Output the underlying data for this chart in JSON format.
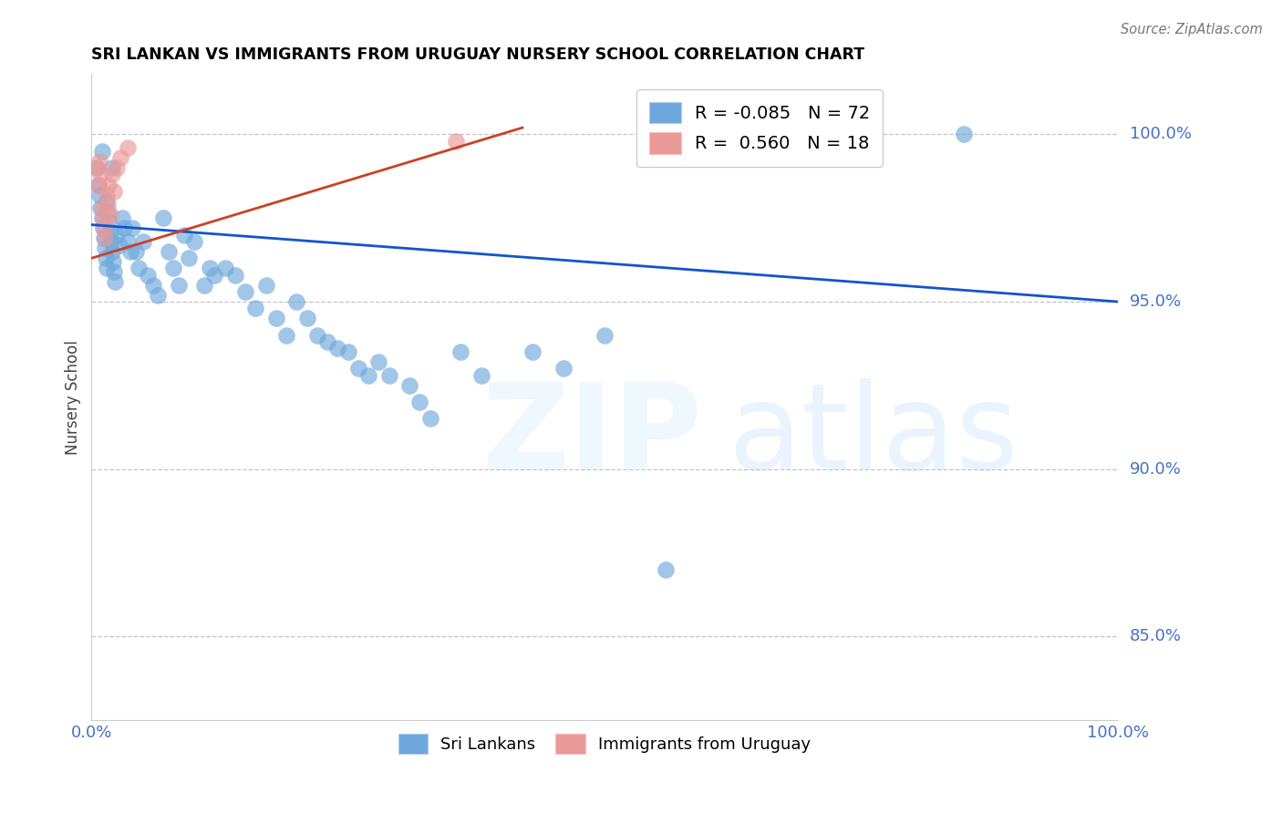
{
  "title": "SRI LANKAN VS IMMIGRANTS FROM URUGUAY NURSERY SCHOOL CORRELATION CHART",
  "source": "Source: ZipAtlas.com",
  "ylabel": "Nursery School",
  "ytick_labels": [
    "100.0%",
    "95.0%",
    "90.0%",
    "85.0%"
  ],
  "ytick_values": [
    1.0,
    0.95,
    0.9,
    0.85
  ],
  "xlim": [
    0.0,
    1.0
  ],
  "ylim": [
    0.825,
    1.018
  ],
  "legend_blue_r": "-0.085",
  "legend_blue_n": "72",
  "legend_pink_r": "0.560",
  "legend_pink_n": "18",
  "legend_label_blue": "Sri Lankans",
  "legend_label_pink": "Immigrants from Uruguay",
  "blue_color": "#6fa8dc",
  "pink_color": "#ea9999",
  "trendline_blue": "#1155cc",
  "trendline_pink": "#cc4125",
  "grid_color": "#b7b7b7",
  "title_color": "#000000",
  "axis_label_color": "#434343",
  "ytick_color": "#4472c4",
  "xtick_color": "#4472c4",
  "blue_scatter_x": [
    0.005,
    0.007,
    0.008,
    0.009,
    0.01,
    0.01,
    0.011,
    0.012,
    0.013,
    0.014,
    0.015,
    0.015,
    0.016,
    0.017,
    0.018,
    0.019,
    0.02,
    0.02,
    0.021,
    0.022,
    0.023,
    0.025,
    0.027,
    0.03,
    0.032,
    0.035,
    0.038,
    0.04,
    0.043,
    0.046,
    0.05,
    0.055,
    0.06,
    0.065,
    0.07,
    0.075,
    0.08,
    0.085,
    0.09,
    0.095,
    0.1,
    0.11,
    0.115,
    0.12,
    0.13,
    0.14,
    0.15,
    0.16,
    0.17,
    0.18,
    0.19,
    0.2,
    0.21,
    0.22,
    0.23,
    0.24,
    0.25,
    0.26,
    0.27,
    0.28,
    0.29,
    0.31,
    0.32,
    0.33,
    0.36,
    0.38,
    0.43,
    0.46,
    0.5,
    0.56,
    0.68,
    0.85
  ],
  "blue_scatter_y": [
    0.99,
    0.985,
    0.982,
    0.978,
    0.975,
    0.995,
    0.972,
    0.969,
    0.966,
    0.963,
    0.98,
    0.96,
    0.977,
    0.974,
    0.971,
    0.968,
    0.99,
    0.965,
    0.962,
    0.959,
    0.956,
    0.97,
    0.967,
    0.975,
    0.972,
    0.968,
    0.965,
    0.972,
    0.965,
    0.96,
    0.968,
    0.958,
    0.955,
    0.952,
    0.975,
    0.965,
    0.96,
    0.955,
    0.97,
    0.963,
    0.968,
    0.955,
    0.96,
    0.958,
    0.96,
    0.958,
    0.953,
    0.948,
    0.955,
    0.945,
    0.94,
    0.95,
    0.945,
    0.94,
    0.938,
    0.936,
    0.935,
    0.93,
    0.928,
    0.932,
    0.928,
    0.925,
    0.92,
    0.915,
    0.935,
    0.928,
    0.935,
    0.93,
    0.94,
    0.87,
    1.0,
    1.0
  ],
  "pink_scatter_x": [
    0.005,
    0.007,
    0.008,
    0.009,
    0.01,
    0.011,
    0.012,
    0.013,
    0.015,
    0.016,
    0.017,
    0.018,
    0.02,
    0.022,
    0.025,
    0.028,
    0.035,
    0.355
  ],
  "pink_scatter_y": [
    0.99,
    0.985,
    0.992,
    0.988,
    0.978,
    0.975,
    0.972,
    0.969,
    0.982,
    0.979,
    0.985,
    0.976,
    0.988,
    0.983,
    0.99,
    0.993,
    0.996,
    0.998
  ],
  "blue_trend_x": [
    0.0,
    1.0
  ],
  "blue_trend_y": [
    0.973,
    0.95
  ],
  "pink_trend_x": [
    0.0,
    0.42
  ],
  "pink_trend_y": [
    0.963,
    1.002
  ]
}
